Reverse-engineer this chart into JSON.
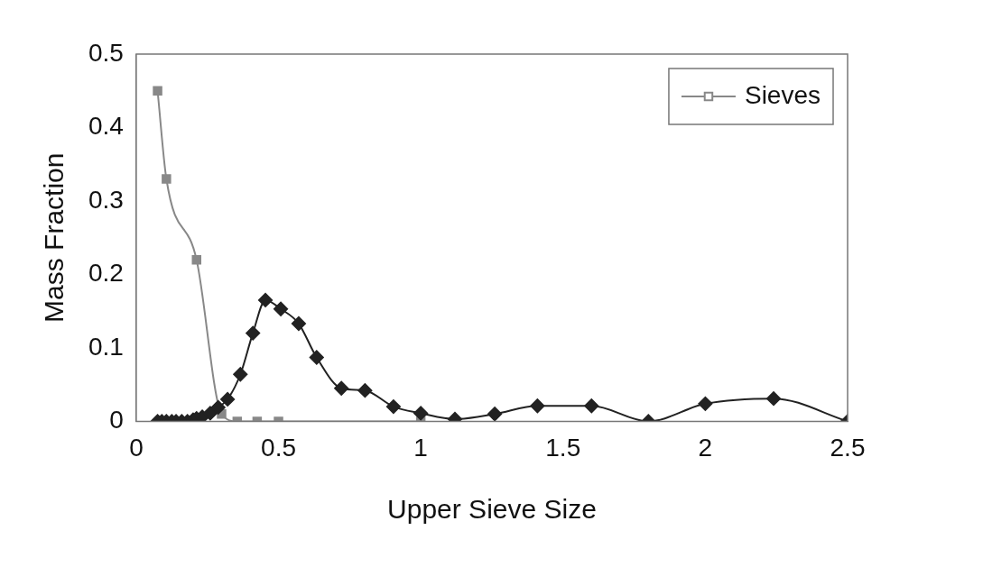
{
  "chart_data": {
    "type": "line",
    "xlabel": "Upper Sieve Size",
    "ylabel": "Mass Fraction",
    "xlim": [
      0,
      2.5
    ],
    "xticks": [
      0,
      0.5,
      1,
      1.5,
      2,
      2.5
    ],
    "ylim": [
      0,
      0.5
    ],
    "yticks": [
      0,
      0.1,
      0.2,
      0.3,
      0.4,
      0.5
    ],
    "grid": false,
    "legend": "top right",
    "series": [
      {
        "color": "#222222",
        "marker": "diamond",
        "x": [
          0.075,
          0.09,
          0.106,
          0.125,
          0.14,
          0.16,
          0.18,
          0.2,
          0.212,
          0.232,
          0.26,
          0.288,
          0.321,
          0.366,
          0.41,
          0.454,
          0.508,
          0.571,
          0.634,
          0.721,
          0.804,
          0.904,
          1.0,
          1.12,
          1.26,
          1.41,
          1.6,
          1.8,
          2.0,
          2.24,
          2.5
        ],
        "values": [
          0,
          0,
          0,
          0,
          0,
          0,
          0,
          0.002,
          0.004,
          0.006,
          0.011,
          0.019,
          0.03,
          0.064,
          0.12,
          0.165,
          0.153,
          0.133,
          0.087,
          0.045,
          0.042,
          0.02,
          0.011,
          0.003,
          0.01,
          0.021,
          0.021,
          0,
          0.024,
          0.031,
          0
        ]
      },
      {
        "name": "Sieves",
        "color": "#888888",
        "marker": "square",
        "x": [
          0.075,
          0.106,
          0.212,
          0.3,
          0.355,
          0.425,
          0.5,
          1.0
        ],
        "values": [
          0.45,
          0.33,
          0.22,
          0.01,
          0,
          0,
          0,
          0
        ]
      }
    ]
  }
}
